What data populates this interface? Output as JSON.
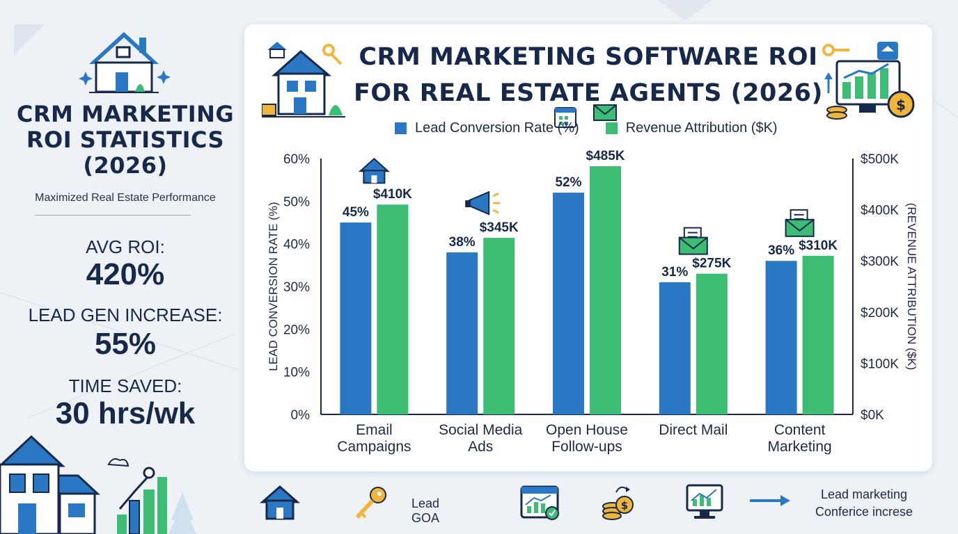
{
  "side": {
    "title": "CRM MARKETING\nROI STATISTICS\n(2026)",
    "subtitle": "Maximized Real Estate Performance",
    "stats": [
      {
        "label": "AVG ROI:",
        "value": "420%"
      },
      {
        "label": "LEAD GEN INCREASE:",
        "value": "55%"
      },
      {
        "label": "TIME SAVED:",
        "value": "30 hrs/wk"
      }
    ]
  },
  "bottom": {
    "lead_goa": "Lead GOA",
    "caption_line1": "Lead marketing",
    "caption_line2": "Conferice increse"
  },
  "icons": [
    "house-icon",
    "key-icon",
    "calendar-icon",
    "envelope-icon",
    "megaphone-icon",
    "chart-monitor-icon",
    "coins-icon",
    "arrow-right-icon"
  ],
  "colors": {
    "blue": "#2a78c4",
    "green": "#3cbd73",
    "navy": "#16294a"
  },
  "chart_data": {
    "type": "bar",
    "title": "CRM MARKETING SOFTWARE ROI\nFOR REAL ESTATE AGENTS (2026)",
    "categories": [
      "Email\nCampaigns",
      "Social Media\nAds",
      "Open House\nFollow-ups",
      "Direct Mail",
      "Content\nMarketing"
    ],
    "series": [
      {
        "name": "Lead Conversion Rate (%)",
        "axis": "left",
        "color": "#2a78c4",
        "values": [
          45,
          38,
          52,
          31,
          36
        ],
        "labels": [
          "45%",
          "38%",
          "52%",
          "31%",
          "36%"
        ]
      },
      {
        "name": "Revenue Attribution ($K)",
        "axis": "right",
        "color": "#3cbd73",
        "values": [
          410,
          345,
          485,
          275,
          310
        ],
        "labels": [
          "$410K",
          "$345K",
          "$485K",
          "$275K",
          "$310K"
        ]
      }
    ],
    "ylabel": "LEAD CONVERSION RATE (%)",
    "y2label": "(REVENUE ATTRIBUTION ($K)",
    "ylim": [
      0,
      60
    ],
    "yticks": [
      "0%",
      "10%",
      "20%",
      "30%",
      "40%",
      "50%",
      "60%"
    ],
    "y2lim": [
      0,
      500
    ],
    "y2ticks": [
      "$0K",
      "$100K",
      "$200K",
      "$300K",
      "$400K",
      "$500K"
    ],
    "category_icons": [
      "house-icon",
      "megaphone-icon",
      "calendar-icon",
      "envelope-icon",
      "envelope-icon"
    ],
    "legend_position": "top",
    "grid": false
  }
}
